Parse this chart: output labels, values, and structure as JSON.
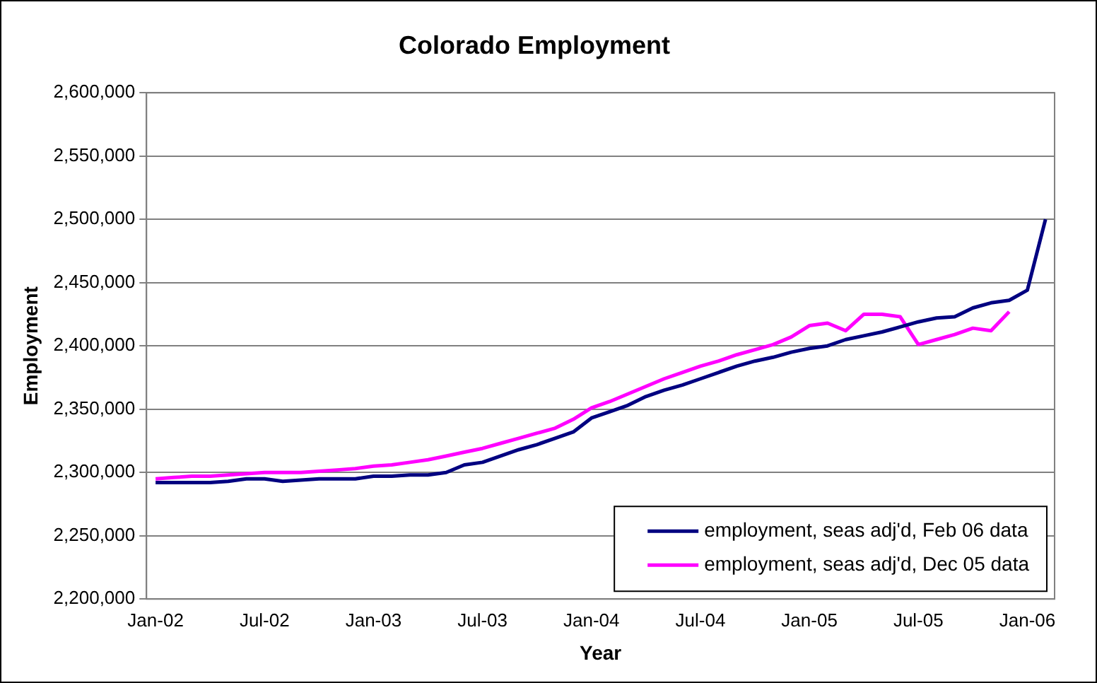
{
  "chart_data": {
    "type": "line",
    "title": "Colorado Employment",
    "xlabel": "Year",
    "ylabel": "Employment",
    "categories": [
      "Jan-02",
      null,
      null,
      null,
      null,
      null,
      "Jul-02",
      null,
      null,
      null,
      null,
      null,
      "Jan-03",
      null,
      null,
      null,
      null,
      null,
      "Jul-03",
      null,
      null,
      null,
      null,
      null,
      "Jan-04",
      null,
      null,
      null,
      null,
      null,
      "Jul-04",
      null,
      null,
      null,
      null,
      null,
      "Jan-05",
      null,
      null,
      null,
      null,
      null,
      "Jul-05",
      null,
      null,
      null,
      null,
      null,
      "Jan-06",
      null
    ],
    "series": [
      {
        "name": "employment, seas adj'd, Feb 06 data",
        "color": "#000080",
        "values": [
          2292000,
          2292000,
          2292000,
          2292000,
          2293000,
          2295000,
          2295000,
          2293000,
          2294000,
          2295000,
          2295000,
          2295000,
          2297000,
          2297000,
          2298000,
          2298000,
          2300000,
          2306000,
          2308000,
          2313000,
          2318000,
          2322000,
          2327000,
          2332000,
          2343000,
          2348000,
          2353000,
          2360000,
          2365000,
          2369000,
          2374000,
          2379000,
          2384000,
          2388000,
          2391000,
          2395000,
          2398000,
          2400000,
          2405000,
          2408000,
          2411000,
          2415000,
          2419000,
          2422000,
          2423000,
          2430000,
          2434000,
          2436000,
          2444000,
          2500000
        ]
      },
      {
        "name": "employment, seas adj'd, Dec 05 data",
        "color": "#ff00ff",
        "values": [
          2295000,
          2296000,
          2297000,
          2297000,
          2298000,
          2299000,
          2300000,
          2300000,
          2300000,
          2301000,
          2302000,
          2303000,
          2305000,
          2306000,
          2308000,
          2310000,
          2313000,
          2316000,
          2319000,
          2323000,
          2327000,
          2331000,
          2335000,
          2342000,
          2351000,
          2356000,
          2362000,
          2368000,
          2374000,
          2379000,
          2384000,
          2388000,
          2393000,
          2397000,
          2401000,
          2407000,
          2416000,
          2418000,
          2412000,
          2425000,
          2425000,
          2423000,
          2401000,
          2405000,
          2409000,
          2414000,
          2412000,
          2427000,
          null,
          null
        ]
      }
    ],
    "ylim": [
      2200000,
      2600000
    ],
    "yticks": [
      {
        "value": 2200000,
        "label": "2,200,000"
      },
      {
        "value": 2250000,
        "label": "2,250,000"
      },
      {
        "value": 2300000,
        "label": "2,300,000"
      },
      {
        "value": 2350000,
        "label": "2,350,000"
      },
      {
        "value": 2400000,
        "label": "2,400,000"
      },
      {
        "value": 2450000,
        "label": "2,450,000"
      },
      {
        "value": 2500000,
        "label": "2,500,000"
      },
      {
        "value": 2550000,
        "label": "2,550,000"
      },
      {
        "value": 2600000,
        "label": "2,600,000"
      }
    ],
    "grid": "y",
    "legend": "bottom right",
    "marker": "none",
    "line_style": "solid"
  }
}
